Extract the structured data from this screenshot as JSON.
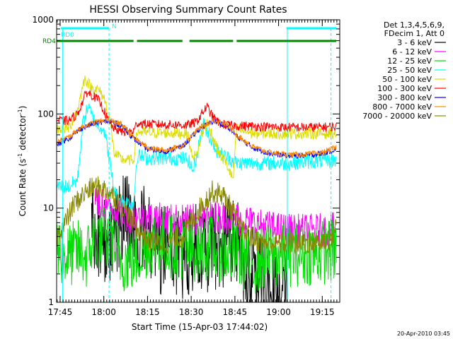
{
  "chart_data": {
    "type": "line",
    "title": "HESSI Observing Summary Count Rates",
    "xlabel": "Start Time (15-Apr-03 17:44:02)",
    "ylabel_main": "Count Rate (s",
    "ylabel_sup1": "-1",
    "ylabel_mid": " detector",
    "ylabel_sup2": "-1",
    "ylabel_end": ")",
    "timestamp": "20-Apr-2010 03:45",
    "x_domain_minutes": [
      17.73,
      19.35
    ],
    "y_scale": "log",
    "ylim": [
      1,
      1000
    ],
    "x_ticks": [
      {
        "label": "17:45",
        "t": 17.75
      },
      {
        "label": "18:00",
        "t": 18.0
      },
      {
        "label": "18:15",
        "t": 18.25
      },
      {
        "label": "18:30",
        "t": 18.5
      },
      {
        "label": "18:45",
        "t": 18.75
      },
      {
        "label": "19:00",
        "t": 19.0
      },
      {
        "label": "19:15",
        "t": 19.25
      }
    ],
    "y_ticks": [
      {
        "label": "1",
        "v": 1
      },
      {
        "label": "10",
        "v": 10
      },
      {
        "label": "100",
        "v": 100
      },
      {
        "label": "1000",
        "v": 1000
      }
    ],
    "legend": {
      "placement": "right",
      "header": [
        "Det 1,3,4,5,6,9,",
        "FDecim 1, Att 0"
      ],
      "entries": [
        {
          "label": "3 - 6 keV",
          "color": "#000000"
        },
        {
          "label": "6 - 12 keV",
          "color": "#ff00ff"
        },
        {
          "label": "12 - 25 keV",
          "color": "#00dd00"
        },
        {
          "label": "25 - 50 keV",
          "color": "#00ffff"
        },
        {
          "label": "50 - 100 keV",
          "color": "#dddd00"
        },
        {
          "label": "100 - 300 keV",
          "color": "#ff0000"
        },
        {
          "label": "300 - 800 keV",
          "color": "#0000ff"
        },
        {
          "label": "800 - 7000 keV",
          "color": "#ff8800"
        },
        {
          "label": "7000 - 20000 keV",
          "color": "#888800"
        }
      ]
    },
    "flag_bars": [
      {
        "label": "RD0",
        "color": "#00ffff",
        "label_x": 86,
        "segments": [
          [
            17.755,
            18.03
          ],
          [
            19.045,
            19.33
          ]
        ]
      },
      {
        "label": "RD4",
        "color": "#008800",
        "label_x": 60,
        "segments": [
          [
            17.73,
            18.17
          ],
          [
            18.19,
            18.45
          ],
          [
            18.49,
            18.74
          ],
          [
            18.76,
            19.33
          ]
        ]
      },
      {
        "label": "N",
        "color": "#00ffff",
        "label_x": 158,
        "segments": []
      }
    ],
    "vertical_markers": [
      {
        "t": 17.765,
        "color": "#00ffff",
        "dashed": false
      },
      {
        "t": 18.03,
        "color": "#00ffff",
        "dashed": true
      },
      {
        "t": 19.05,
        "color": "#00ffff",
        "dashed": false
      },
      {
        "t": 19.3,
        "color": "#00ffff",
        "dashed": true
      }
    ],
    "series": [
      {
        "name": "3 - 6 keV",
        "color": "#000000",
        "noise": 0.5,
        "t_start": 17.93,
        "points": [
          [
            17.93,
            6
          ],
          [
            17.97,
            5
          ],
          [
            18.02,
            5
          ],
          [
            18.05,
            5
          ],
          [
            18.1,
            8
          ],
          [
            18.17,
            7
          ],
          [
            18.25,
            5
          ],
          [
            18.3,
            4
          ],
          [
            18.4,
            3.5
          ],
          [
            18.48,
            3.2
          ],
          [
            18.55,
            3.8
          ],
          [
            18.65,
            4.2
          ],
          [
            18.75,
            4
          ],
          [
            18.85,
            2.3
          ],
          [
            18.95,
            1.3
          ],
          [
            19.0,
            1.0
          ],
          [
            19.05,
            1.2
          ]
        ]
      },
      {
        "name": "6 - 12 keV",
        "color": "#ff00ff",
        "noise": 0.18,
        "points": [
          [
            17.95,
            12
          ],
          [
            18.05,
            10
          ],
          [
            18.1,
            9
          ],
          [
            18.17,
            8
          ],
          [
            18.25,
            8
          ],
          [
            18.35,
            7.5
          ],
          [
            18.45,
            7.4
          ],
          [
            18.53,
            7.4
          ],
          [
            18.6,
            8
          ],
          [
            18.7,
            8
          ],
          [
            18.8,
            7.5
          ],
          [
            18.9,
            6.5
          ],
          [
            19.0,
            6
          ],
          [
            19.1,
            5.8
          ],
          [
            19.2,
            5.8
          ],
          [
            19.33,
            6
          ]
        ]
      },
      {
        "name": "12 - 25 keV",
        "color": "#00dd00",
        "noise": 0.35,
        "points": [
          [
            17.73,
            4
          ],
          [
            17.78,
            3
          ],
          [
            17.85,
            3.5
          ],
          [
            17.9,
            3
          ],
          [
            17.95,
            5
          ],
          [
            18.0,
            4.8
          ],
          [
            18.05,
            4.5
          ],
          [
            18.1,
            2.8
          ],
          [
            18.17,
            2.8
          ],
          [
            18.25,
            4
          ],
          [
            18.3,
            4.8
          ],
          [
            18.38,
            4
          ],
          [
            18.48,
            3.6
          ],
          [
            18.55,
            3.7
          ],
          [
            18.62,
            3.8
          ],
          [
            18.7,
            3.5
          ],
          [
            18.76,
            3.2
          ],
          [
            18.85,
            2.6
          ],
          [
            18.95,
            3.1
          ],
          [
            19.05,
            3.2
          ],
          [
            19.15,
            3.3
          ],
          [
            19.33,
            3.5
          ]
        ]
      },
      {
        "name": "25 - 50 keV",
        "color": "#00ffff",
        "noise": 0.08,
        "points": [
          [
            17.73,
            17
          ],
          [
            17.8,
            17
          ],
          [
            17.85,
            20
          ],
          [
            17.88,
            80
          ],
          [
            17.91,
            120
          ],
          [
            17.95,
            80
          ],
          [
            18.0,
            70
          ],
          [
            18.03,
            35
          ],
          [
            18.06,
            15
          ],
          [
            18.1,
            12
          ],
          [
            18.17,
            11
          ],
          [
            18.19,
            36
          ],
          [
            18.25,
            34
          ],
          [
            18.3,
            34
          ],
          [
            18.4,
            34
          ],
          [
            18.48,
            33
          ],
          [
            18.51,
            25
          ],
          [
            18.53,
            35
          ],
          [
            18.57,
            80
          ],
          [
            18.6,
            60
          ],
          [
            18.65,
            40
          ],
          [
            18.7,
            35
          ],
          [
            18.74,
            32
          ],
          [
            18.76,
            30
          ],
          [
            18.85,
            30
          ],
          [
            18.95,
            30
          ],
          [
            19.05,
            30
          ],
          [
            19.15,
            31
          ],
          [
            19.33,
            32
          ]
        ]
      },
      {
        "name": "50 - 100 keV",
        "color": "#dddd00",
        "noise": 0.06,
        "points": [
          [
            17.73,
            70
          ],
          [
            17.8,
            70
          ],
          [
            17.85,
            110
          ],
          [
            17.89,
            240
          ],
          [
            17.93,
            190
          ],
          [
            17.97,
            180
          ],
          [
            18.0,
            150
          ],
          [
            18.03,
            100
          ],
          [
            18.06,
            38
          ],
          [
            18.1,
            33
          ],
          [
            18.17,
            32
          ],
          [
            18.19,
            65
          ],
          [
            18.25,
            63
          ],
          [
            18.35,
            63
          ],
          [
            18.48,
            62
          ],
          [
            18.5,
            38
          ],
          [
            18.53,
            35
          ],
          [
            18.56,
            60
          ],
          [
            18.59,
            80
          ],
          [
            18.62,
            60
          ],
          [
            18.66,
            38
          ],
          [
            18.7,
            30
          ],
          [
            18.74,
            20
          ],
          [
            18.76,
            70
          ],
          [
            18.85,
            62
          ],
          [
            18.95,
            62
          ],
          [
            19.05,
            62
          ],
          [
            19.15,
            62
          ],
          [
            19.33,
            62
          ]
        ]
      },
      {
        "name": "100 - 300 keV",
        "color": "#ff0000",
        "noise": 0.05,
        "points": [
          [
            17.73,
            85
          ],
          [
            17.8,
            85
          ],
          [
            17.85,
            100
          ],
          [
            17.9,
            170
          ],
          [
            17.93,
            160
          ],
          [
            17.97,
            140
          ],
          [
            18.0,
            110
          ],
          [
            18.03,
            80
          ],
          [
            18.06,
            70
          ],
          [
            18.1,
            65
          ],
          [
            18.17,
            65
          ],
          [
            18.19,
            80
          ],
          [
            18.25,
            78
          ],
          [
            18.35,
            77
          ],
          [
            18.48,
            76
          ],
          [
            18.53,
            82
          ],
          [
            18.56,
            100
          ],
          [
            18.59,
            120
          ],
          [
            18.62,
            95
          ],
          [
            18.66,
            80
          ],
          [
            18.7,
            76
          ],
          [
            18.76,
            75
          ],
          [
            18.85,
            74
          ],
          [
            18.95,
            73
          ],
          [
            19.05,
            72
          ],
          [
            19.15,
            72
          ],
          [
            19.33,
            73
          ]
        ]
      },
      {
        "name": "300 - 800 keV",
        "color": "#0000ff",
        "noise": 0.03,
        "points": [
          [
            17.73,
            48
          ],
          [
            17.8,
            55
          ],
          [
            17.87,
            70
          ],
          [
            17.95,
            80
          ],
          [
            18.03,
            84
          ],
          [
            18.1,
            76
          ],
          [
            18.17,
            55
          ],
          [
            18.25,
            42
          ],
          [
            18.35,
            40
          ],
          [
            18.45,
            45
          ],
          [
            18.55,
            70
          ],
          [
            18.63,
            84
          ],
          [
            18.7,
            76
          ],
          [
            18.76,
            58
          ],
          [
            18.85,
            44
          ],
          [
            18.95,
            38
          ],
          [
            19.05,
            36
          ],
          [
            19.15,
            36
          ],
          [
            19.25,
            38
          ],
          [
            19.33,
            42
          ]
        ]
      },
      {
        "name": "800 - 7000 keV",
        "color": "#ff8800",
        "noise": 0.03,
        "points": [
          [
            17.73,
            50
          ],
          [
            17.8,
            57
          ],
          [
            17.87,
            72
          ],
          [
            17.95,
            82
          ],
          [
            18.03,
            86
          ],
          [
            18.1,
            78
          ],
          [
            18.17,
            56
          ],
          [
            18.25,
            44
          ],
          [
            18.35,
            41
          ],
          [
            18.45,
            46
          ],
          [
            18.55,
            72
          ],
          [
            18.63,
            86
          ],
          [
            18.7,
            78
          ],
          [
            18.76,
            60
          ],
          [
            18.85,
            45
          ],
          [
            18.95,
            39
          ],
          [
            19.05,
            37
          ],
          [
            19.15,
            37
          ],
          [
            19.25,
            39
          ],
          [
            19.33,
            44
          ]
        ]
      },
      {
        "name": "7000 - 20000 keV",
        "color": "#888800",
        "noise": 0.12,
        "points": [
          [
            17.73,
            5
          ],
          [
            17.78,
            7
          ],
          [
            17.83,
            11
          ],
          [
            17.9,
            15
          ],
          [
            17.95,
            17
          ],
          [
            18.0,
            16
          ],
          [
            18.05,
            14
          ],
          [
            18.1,
            11
          ],
          [
            18.17,
            7
          ],
          [
            18.25,
            4.5
          ],
          [
            18.35,
            4.2
          ],
          [
            18.45,
            5
          ],
          [
            18.55,
            10
          ],
          [
            18.62,
            15
          ],
          [
            18.68,
            14
          ],
          [
            18.74,
            9
          ],
          [
            18.8,
            5.5
          ],
          [
            18.9,
            4.3
          ],
          [
            19.0,
            4.2
          ],
          [
            19.1,
            4.2
          ],
          [
            19.2,
            4.3
          ],
          [
            19.3,
            4.6
          ],
          [
            19.33,
            6.5
          ]
        ]
      }
    ]
  }
}
